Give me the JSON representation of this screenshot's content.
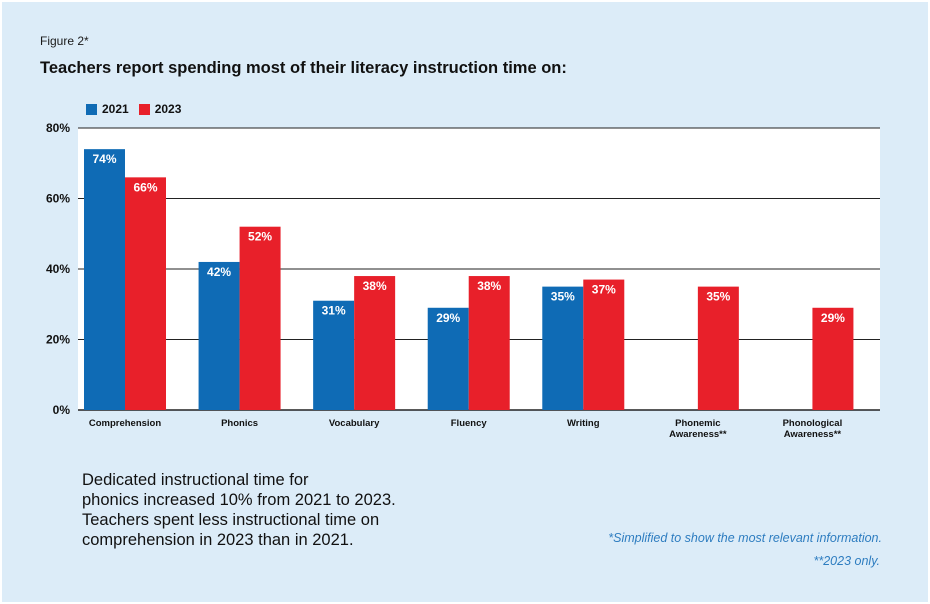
{
  "figure_label": "Figure 2*",
  "caption_lines": [
    "Dedicated instructional time for",
    "phonics increased 10% from 2021 to 2023.",
    "Teachers spent less instructional time on",
    "comprehension in 2023 than in 2021."
  ],
  "footnotes": [
    "*Simplified to show the most relevant information.",
    "**2023 only."
  ],
  "colors": {
    "series_2021": "#0f6bb5",
    "series_2023": "#e8202a",
    "background": "#dcecf8",
    "plot_background": "#ffffff"
  },
  "chart_data": {
    "type": "bar",
    "title": "Teachers report spending most of their literacy instruction time on:",
    "categories": [
      "Comprehension",
      "Phonics",
      "Vocabulary",
      "Fluency",
      "Writing",
      "Phonemic Awareness**",
      "Phonological Awareness**"
    ],
    "category_lines": [
      [
        "Comprehension"
      ],
      [
        "Phonics"
      ],
      [
        "Vocabulary"
      ],
      [
        "Fluency"
      ],
      [
        "Writing"
      ],
      [
        "Phonemic",
        "Awareness**"
      ],
      [
        "Phonological",
        "Awareness**"
      ]
    ],
    "series": [
      {
        "name": "2021",
        "values": [
          74,
          42,
          31,
          29,
          35,
          null,
          null
        ]
      },
      {
        "name": "2023",
        "values": [
          66,
          52,
          38,
          38,
          37,
          35,
          29
        ]
      }
    ],
    "ylim": [
      0,
      80
    ],
    "yticks": [
      0,
      20,
      40,
      60,
      80
    ],
    "ytick_labels": [
      "0%",
      "20%",
      "40%",
      "60%",
      "80%"
    ],
    "value_suffix": "%",
    "grid": true,
    "legend": "top-left"
  }
}
